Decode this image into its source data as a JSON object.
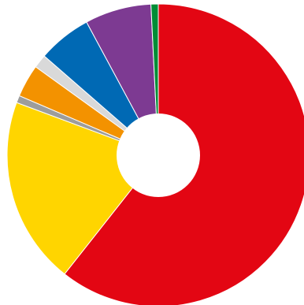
{
  "chart_data": {
    "type": "pie",
    "title": "",
    "donut": true,
    "start": "12 o'clock",
    "direction": "clockwise",
    "unit": "percent",
    "legend": "none",
    "slices": [
      {
        "value": 62.4,
        "color": "#e30613"
      },
      {
        "value": 20.6,
        "color": "#ffd500"
      },
      {
        "value": 0.8,
        "color": "#9d9d9c"
      },
      {
        "value": 3.6,
        "color": "#f39200"
      },
      {
        "value": 1.5,
        "color": "#d9d9d9"
      },
      {
        "value": 5.9,
        "color": "#0069b4"
      },
      {
        "value": 7.3,
        "color": "#7d3a92"
      },
      {
        "value": 0.8,
        "color": "#008d36"
      }
    ]
  }
}
